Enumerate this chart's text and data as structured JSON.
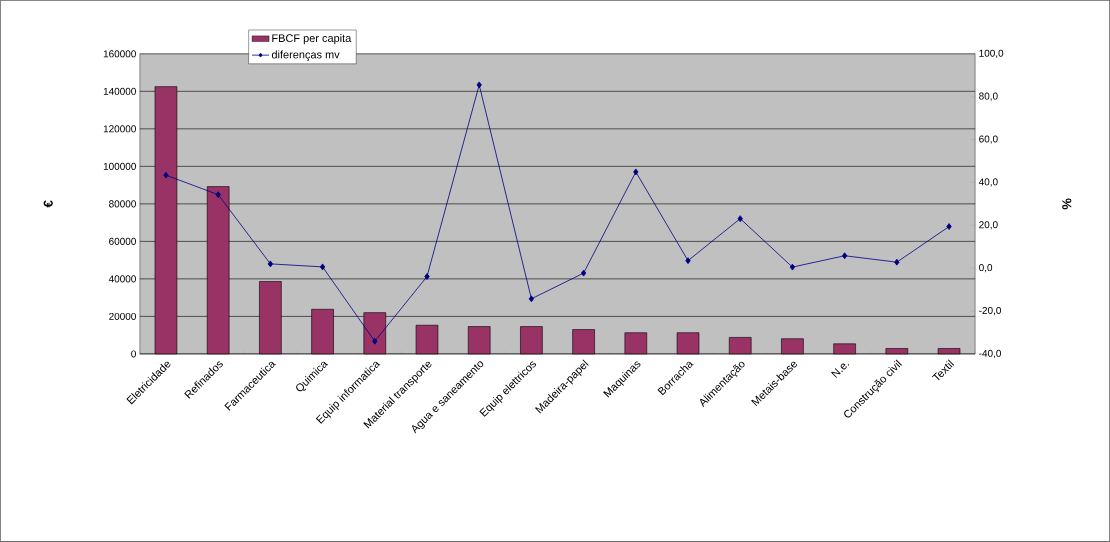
{
  "chart_data": {
    "type": "bar",
    "categories": [
      "Eletricidade",
      "Refinados",
      "Farmaceutica",
      "Quimica",
      "Equip informatica",
      "Material transporte",
      "Agua e saneamento",
      "Equip elettricos",
      "Madeira-papel",
      "Maquinas",
      "Borracha",
      "Alimentação",
      "Metais-base",
      "N.e.",
      "Construção civil",
      "Textil"
    ],
    "series": [
      {
        "name": "FBCF per capita",
        "color": "#993366",
        "values": [
          142500,
          89200,
          38600,
          23800,
          22000,
          15300,
          14600,
          14600,
          13000,
          11300,
          11300,
          8800,
          8100,
          5400,
          2900,
          2900
        ]
      },
      {
        "name": "diferenças mv",
        "type": "line",
        "axis": "y2",
        "color": "#000080",
        "marker": "diamond",
        "values": [
          43.4,
          34.3,
          2.0,
          0.6,
          -34.1,
          -3.9,
          85.5,
          -14.3,
          -2.3,
          44.9,
          3.5,
          23.1,
          0.5,
          5.8,
          2.8,
          19.4
        ]
      }
    ],
    "ylabel": "€",
    "y2label": "%",
    "ylim": [
      0,
      160000
    ],
    "yticks": [
      0,
      20000,
      40000,
      60000,
      80000,
      100000,
      120000,
      140000,
      160000
    ],
    "y2lim": [
      -40,
      100
    ],
    "y2ticks": [
      {
        "value": -40,
        "label": "-40,0"
      },
      {
        "value": -20,
        "label": "-20,0"
      },
      {
        "value": 0,
        "label": "0,0"
      },
      {
        "value": 20,
        "label": "20,0"
      },
      {
        "value": 40,
        "label": "40,0"
      },
      {
        "value": 60,
        "label": "60,0"
      },
      {
        "value": 80,
        "label": "80,0"
      },
      {
        "value": 100,
        "label": "100,0"
      }
    ],
    "grid": "y",
    "legend": "top left"
  }
}
